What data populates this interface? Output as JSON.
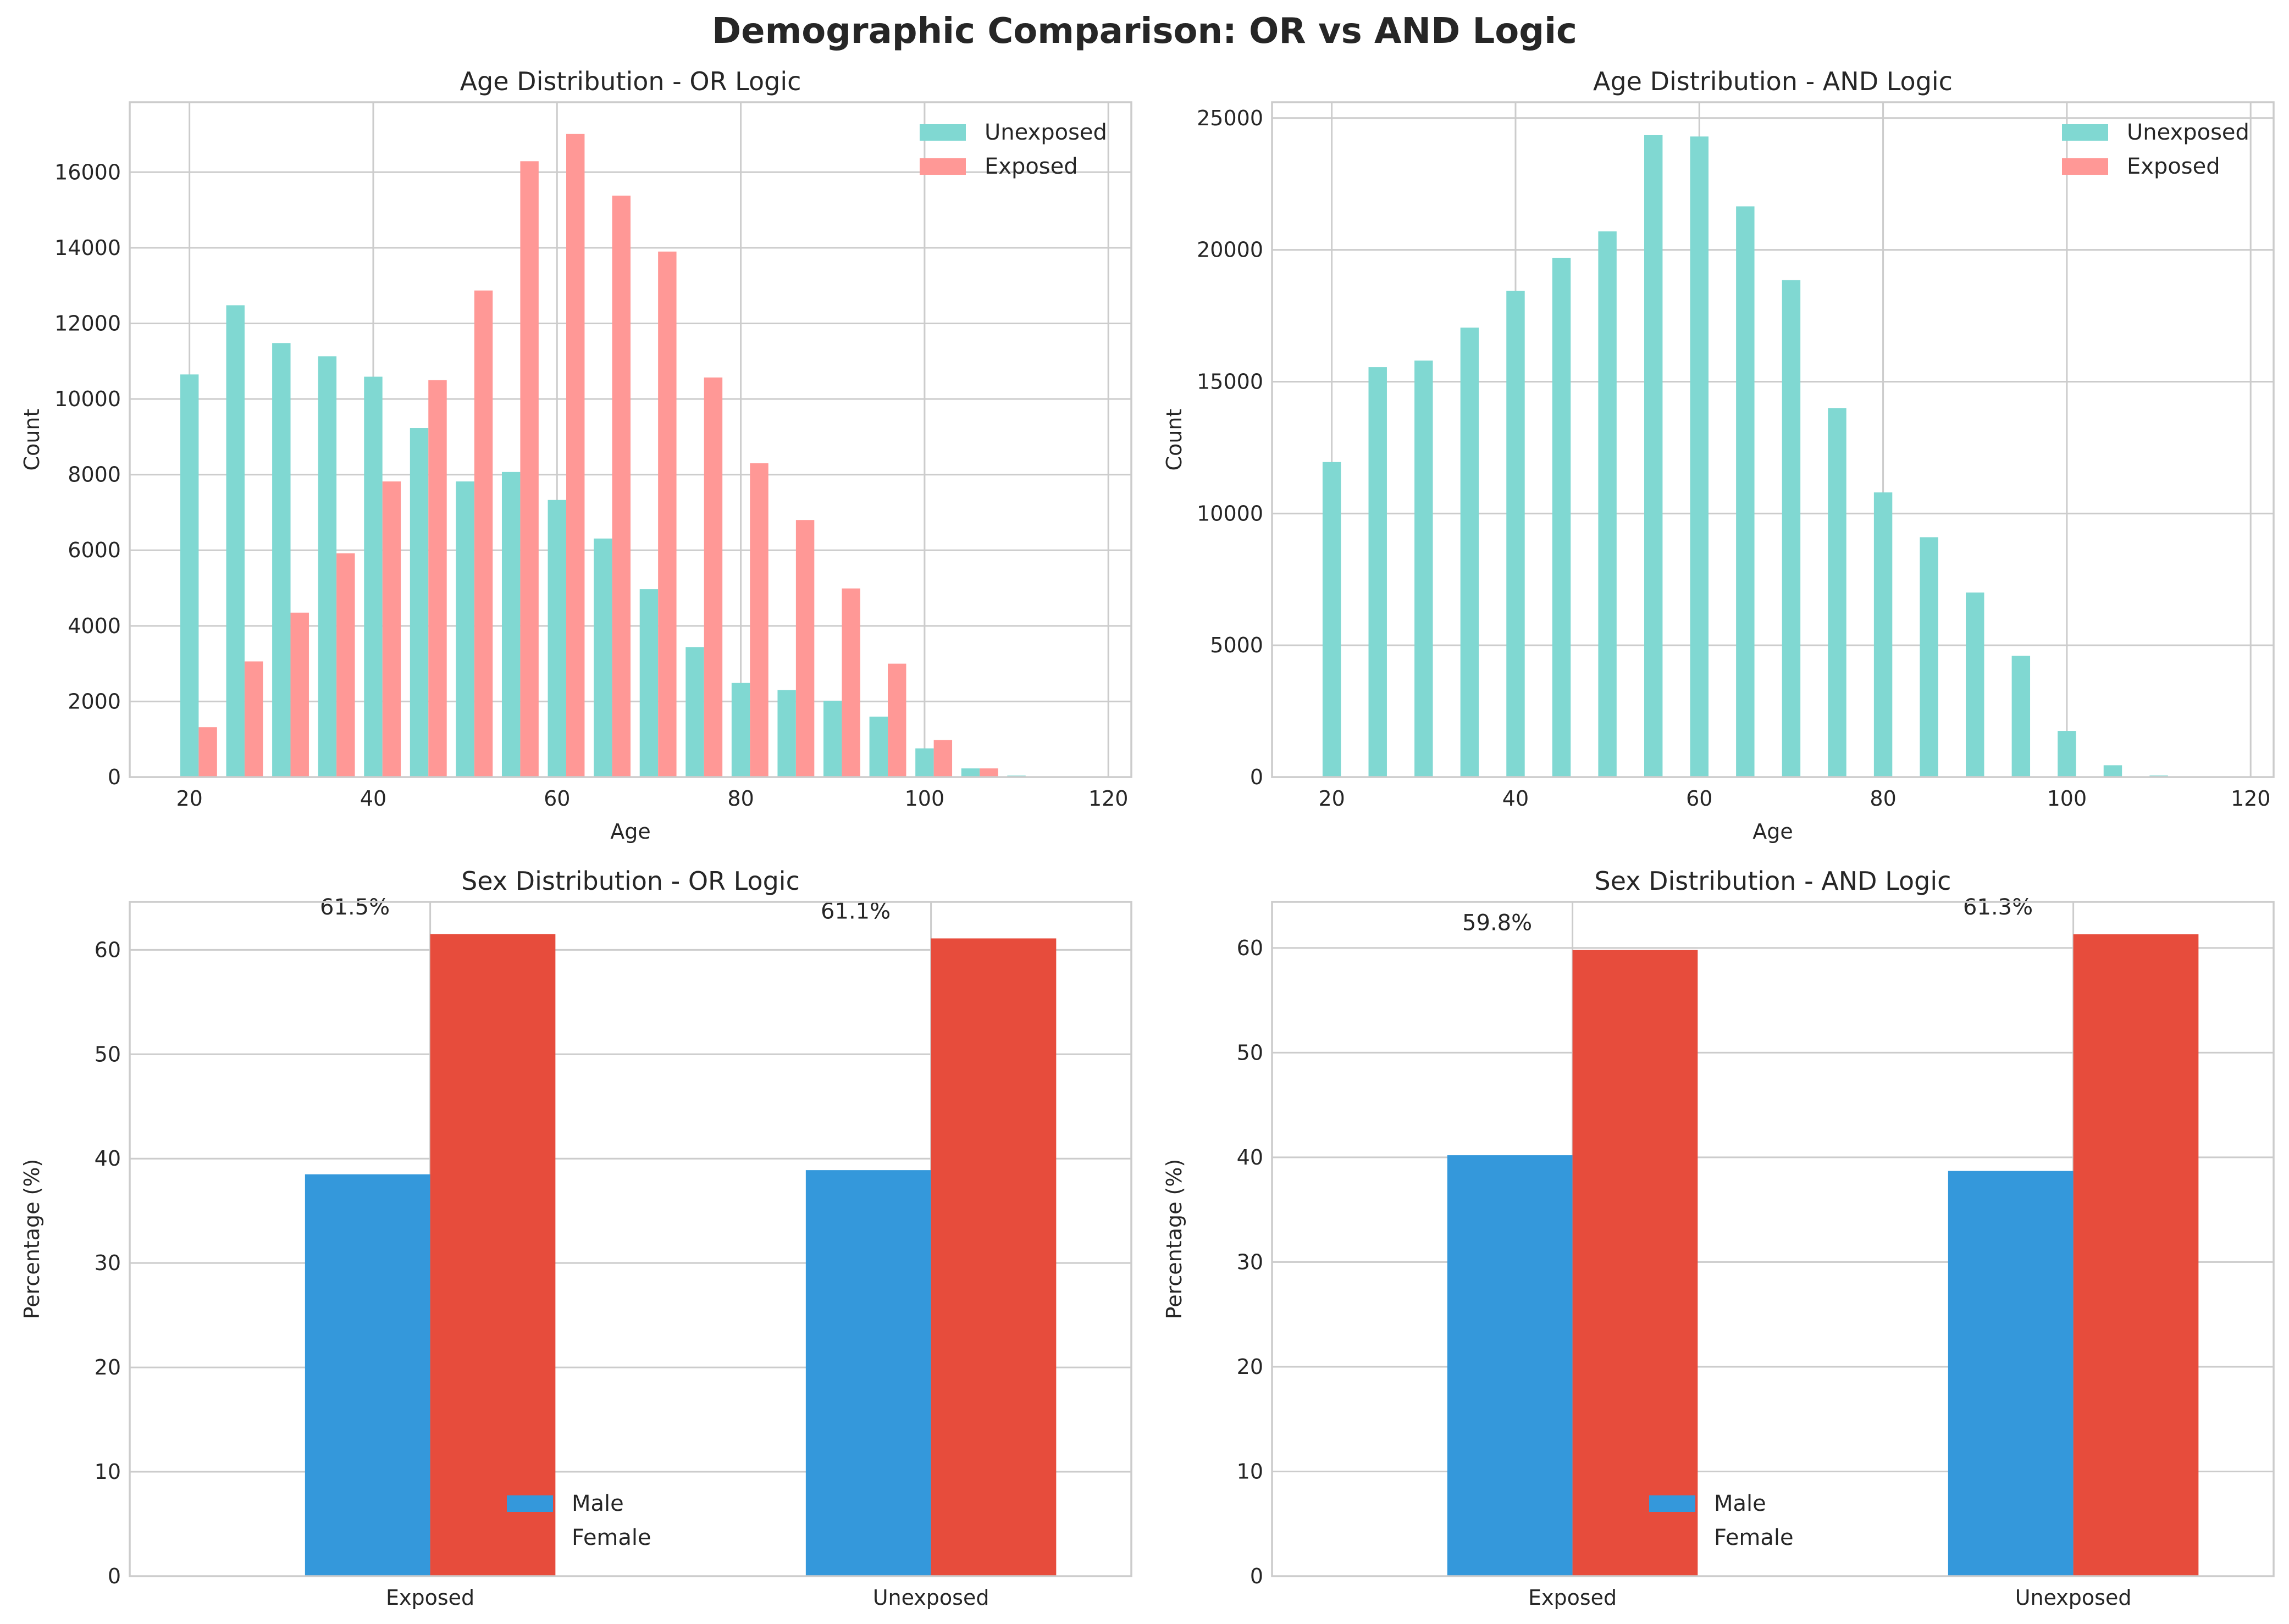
{
  "figure_title": "Demographic Comparison: OR vs AND Logic",
  "colors": {
    "unexposed": "#80d8d2",
    "exposed": "#ff9896",
    "male": "#3498db",
    "female": "#e74c3c"
  },
  "chart_data": [
    {
      "type": "bar",
      "title": "Age Distribution - OR Logic",
      "xlabel": "Age",
      "ylabel": "Count",
      "xlim": [
        13.5,
        122.5
      ],
      "ylim": [
        0,
        17850
      ],
      "xticks": [
        20,
        40,
        60,
        80,
        100,
        120
      ],
      "yticks": [
        0,
        2000,
        4000,
        6000,
        8000,
        10000,
        12000,
        14000,
        16000
      ],
      "grid": true,
      "legend": "top-right",
      "bin_width": 5,
      "bin_centers": [
        21,
        26,
        31,
        36,
        41,
        46,
        51,
        56,
        61,
        66,
        71,
        76,
        81,
        86,
        91,
        96,
        101,
        106,
        111,
        116
      ],
      "series": [
        {
          "name": "Unexposed",
          "values": [
            10650,
            12480,
            11480,
            11130,
            10590,
            9230,
            7820,
            8070,
            7330,
            6310,
            4970,
            3440,
            2490,
            2300,
            2020,
            1600,
            760,
            230,
            40,
            10
          ]
        },
        {
          "name": "Exposed",
          "values": [
            1320,
            3060,
            4350,
            5920,
            7820,
            10500,
            12870,
            16290,
            17010,
            15380,
            13900,
            10570,
            8300,
            6800,
            4990,
            3000,
            980,
            230,
            20,
            5
          ]
        }
      ]
    },
    {
      "type": "bar",
      "title": "Age Distribution - AND Logic",
      "xlabel": "Age",
      "ylabel": "Count",
      "xlim": [
        13.5,
        122.5
      ],
      "ylim": [
        0,
        25600
      ],
      "xticks": [
        20,
        40,
        60,
        80,
        100,
        120
      ],
      "yticks": [
        0,
        5000,
        10000,
        15000,
        20000,
        25000
      ],
      "grid": true,
      "legend": "top-right",
      "bin_width": 5,
      "bin_centers": [
        21,
        26,
        31,
        36,
        41,
        46,
        51,
        56,
        61,
        66,
        71,
        76,
        81,
        86,
        91,
        96,
        101,
        106,
        111,
        116
      ],
      "series": [
        {
          "name": "Unexposed",
          "values": [
            11950,
            15550,
            15800,
            17050,
            18450,
            19700,
            20700,
            24350,
            24300,
            21650,
            18850,
            14000,
            10800,
            9100,
            7000,
            4600,
            1750,
            450,
            60,
            10
          ]
        },
        {
          "name": "Exposed",
          "values": [
            0,
            0,
            0,
            0,
            0,
            0,
            0,
            0,
            0,
            0,
            0,
            0,
            0,
            0,
            0,
            0,
            0,
            0,
            0,
            0
          ]
        }
      ]
    },
    {
      "type": "bar",
      "title": "Sex Distribution - OR Logic",
      "xlabel": "",
      "ylabel": "Percentage (%)",
      "ylim": [
        0,
        64.6
      ],
      "yticks": [
        0,
        10,
        20,
        30,
        40,
        50,
        60
      ],
      "grid": true,
      "legend": "bottom-center",
      "categories": [
        "Exposed",
        "Unexposed"
      ],
      "series": [
        {
          "name": "Male",
          "values": [
            38.5,
            38.9
          ]
        },
        {
          "name": "Female",
          "values": [
            61.5,
            61.1
          ]
        }
      ],
      "annotations": [
        "61.5%",
        "61.1%"
      ]
    },
    {
      "type": "bar",
      "title": "Sex Distribution - AND Logic",
      "xlabel": "",
      "ylabel": "Percentage (%)",
      "ylim": [
        0,
        64.4
      ],
      "yticks": [
        0,
        10,
        20,
        30,
        40,
        50,
        60
      ],
      "grid": true,
      "legend": "bottom-center",
      "categories": [
        "Exposed",
        "Unexposed"
      ],
      "series": [
        {
          "name": "Male",
          "values": [
            40.2,
            38.7
          ]
        },
        {
          "name": "Female",
          "values": [
            59.8,
            61.3
          ]
        }
      ],
      "annotations": [
        "59.8%",
        "61.3%"
      ]
    }
  ]
}
